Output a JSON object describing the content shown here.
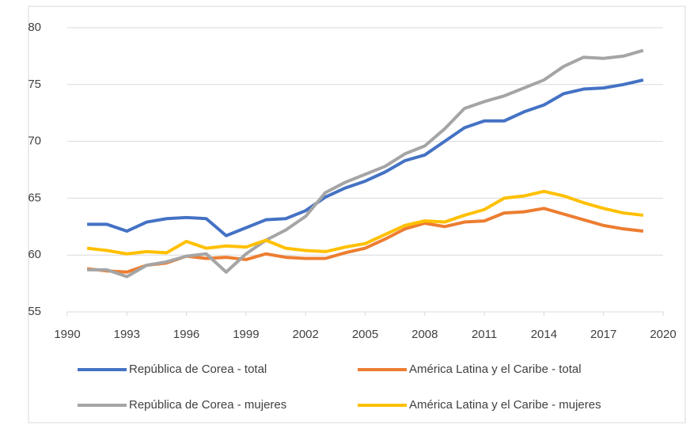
{
  "chart_data": {
    "type": "line",
    "x": [
      1991,
      1992,
      1993,
      1994,
      1995,
      1996,
      1997,
      1998,
      1999,
      2000,
      2001,
      2002,
      2003,
      2004,
      2005,
      2006,
      2007,
      2008,
      2009,
      2010,
      2011,
      2012,
      2013,
      2014,
      2015,
      2016,
      2017,
      2018,
      2019
    ],
    "series": [
      {
        "name": "República de Corea - total",
        "color": "#4472c4",
        "values": [
          62.7,
          62.7,
          62.1,
          62.9,
          63.2,
          63.3,
          63.2,
          61.7,
          62.4,
          63.1,
          63.2,
          63.9,
          65.1,
          65.9,
          66.5,
          67.3,
          68.3,
          68.8,
          70.0,
          71.2,
          71.8,
          71.8,
          72.6,
          73.2,
          74.2,
          74.6,
          74.7,
          75.0,
          75.4
        ]
      },
      {
        "name": "América Latina y el Caribe - total",
        "color": "#ed7d31",
        "values": [
          58.8,
          58.6,
          58.5,
          59.1,
          59.3,
          59.9,
          59.7,
          59.8,
          59.6,
          60.1,
          59.8,
          59.7,
          59.7,
          60.2,
          60.6,
          61.4,
          62.3,
          62.8,
          62.5,
          62.9,
          63.0,
          63.7,
          63.8,
          64.1,
          63.6,
          63.1,
          62.6,
          62.3,
          62.1
        ]
      },
      {
        "name": "República de Corea - mujeres",
        "color": "#a5a5a5",
        "values": [
          58.7,
          58.7,
          58.1,
          59.1,
          59.4,
          59.9,
          60.1,
          58.5,
          60.1,
          61.3,
          62.2,
          63.4,
          65.5,
          66.4,
          67.1,
          67.8,
          68.9,
          69.6,
          71.1,
          72.9,
          73.5,
          74.0,
          74.7,
          75.4,
          76.6,
          77.4,
          77.3,
          77.5,
          78.0
        ]
      },
      {
        "name": "América Latina y el Caribe - mujeres",
        "color": "#ffc000",
        "values": [
          60.6,
          60.4,
          60.1,
          60.3,
          60.2,
          61.2,
          60.6,
          60.8,
          60.7,
          61.3,
          60.6,
          60.4,
          60.3,
          60.7,
          61.0,
          61.8,
          62.6,
          63.0,
          62.9,
          63.5,
          64.0,
          65.0,
          65.2,
          65.6,
          65.2,
          64.6,
          64.1,
          63.7,
          63.5
        ]
      }
    ],
    "xlim": [
      1990,
      2020
    ],
    "xticks": [
      1990,
      1993,
      1996,
      1999,
      2002,
      2005,
      2008,
      2011,
      2014,
      2017,
      2020
    ],
    "ylim": [
      55,
      80
    ],
    "yticks": [
      55,
      60,
      65,
      70,
      75,
      80
    ],
    "grid": true,
    "legend": "bottom"
  }
}
